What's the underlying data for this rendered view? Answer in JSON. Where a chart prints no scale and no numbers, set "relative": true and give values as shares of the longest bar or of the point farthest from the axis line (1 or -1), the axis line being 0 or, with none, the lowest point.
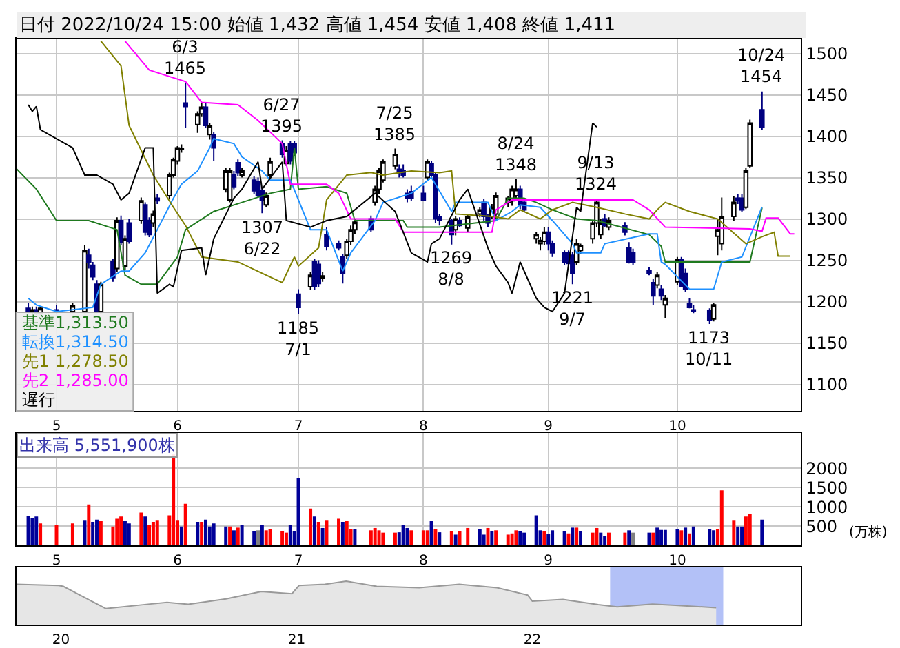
{
  "chart_data": [
    {
      "type": "candlestick",
      "title": "日付 2022/10/24 15:00 始値 1,432 高値 1,454 安値 1,408 終値 1,411",
      "x": [
        "2022-04-25",
        "2022-04-26",
        "2022-04-27",
        "2022-04-28",
        "2022-05-02",
        "2022-05-06",
        "2022-05-09",
        "2022-05-10",
        "2022-05-11",
        "2022-05-12",
        "2022-05-13",
        "2022-05-16",
        "2022-05-17",
        "2022-05-18",
        "2022-05-19",
        "2022-05-20",
        "2022-05-23",
        "2022-05-24",
        "2022-05-25",
        "2022-05-26",
        "2022-05-27",
        "2022-05-30",
        "2022-05-31",
        "2022-06-01",
        "2022-06-02",
        "2022-06-03",
        "2022-06-06",
        "2022-06-07",
        "2022-06-08",
        "2022-06-09",
        "2022-06-10",
        "2022-06-13",
        "2022-06-14",
        "2022-06-15",
        "2022-06-16",
        "2022-06-17",
        "2022-06-20",
        "2022-06-21",
        "2022-06-22",
        "2022-06-23",
        "2022-06-24",
        "2022-06-27",
        "2022-06-28",
        "2022-06-29",
        "2022-06-30",
        "2022-07-01",
        "2022-07-04",
        "2022-07-05",
        "2022-07-06",
        "2022-07-07",
        "2022-07-08",
        "2022-07-11",
        "2022-07-12",
        "2022-07-13",
        "2022-07-14",
        "2022-07-15",
        "2022-07-19",
        "2022-07-20",
        "2022-07-21",
        "2022-07-22",
        "2022-07-25",
        "2022-07-26",
        "2022-07-27",
        "2022-07-28",
        "2022-07-29",
        "2022-08-01",
        "2022-08-02",
        "2022-08-03",
        "2022-08-04",
        "2022-08-05",
        "2022-08-08",
        "2022-08-09",
        "2022-08-10",
        "2022-08-12",
        "2022-08-15",
        "2022-08-16",
        "2022-08-17",
        "2022-08-18",
        "2022-08-19",
        "2022-08-22",
        "2022-08-23",
        "2022-08-24",
        "2022-08-25",
        "2022-08-26",
        "2022-08-29",
        "2022-08-30",
        "2022-08-31",
        "2022-09-01",
        "2022-09-02",
        "2022-09-05",
        "2022-09-06",
        "2022-09-07",
        "2022-09-08",
        "2022-09-09",
        "2022-09-12",
        "2022-09-13",
        "2022-09-14",
        "2022-09-15",
        "2022-09-16",
        "2022-09-20",
        "2022-09-21",
        "2022-09-22",
        "2022-09-26",
        "2022-09-27",
        "2022-09-28",
        "2022-09-29",
        "2022-09-30",
        "2022-10-03",
        "2022-10-04",
        "2022-10-05",
        "2022-10-06",
        "2022-10-07",
        "2022-10-11",
        "2022-10-12",
        "2022-10-13",
        "2022-10-14",
        "2022-10-17",
        "2022-10-18",
        "2022-10-19",
        "2022-10-20",
        "2022-10-21",
        "2022-10-24"
      ],
      "ohlc": [
        [
          1192,
          1198,
          1186,
          1188
        ],
        [
          1188,
          1194,
          1184,
          1190
        ],
        [
          1190,
          1194,
          1184,
          1186
        ],
        [
          1186,
          1194,
          1184,
          1192
        ],
        [
          1190,
          1196,
          1185,
          1188
        ],
        [
          1188,
          1198,
          1186,
          1195
        ],
        [
          1188,
          1268,
          1186,
          1262
        ],
        [
          1256,
          1264,
          1240,
          1248
        ],
        [
          1244,
          1248,
          1226,
          1230
        ],
        [
          1221,
          1226,
          1186,
          1188
        ],
        [
          1188,
          1224,
          1185,
          1221
        ],
        [
          1248,
          1252,
          1224,
          1229
        ],
        [
          1240,
          1302,
          1236,
          1298
        ],
        [
          1298,
          1304,
          1268,
          1272
        ],
        [
          1243,
          1280,
          1238,
          1276
        ],
        [
          1295,
          1300,
          1270,
          1273
        ],
        [
          1298,
          1326,
          1294,
          1322
        ],
        [
          1317,
          1320,
          1280,
          1284
        ],
        [
          1298,
          1302,
          1278,
          1281
        ],
        [
          1295,
          1310,
          1290,
          1306
        ],
        [
          1325,
          1330,
          1318,
          1322
        ],
        [
          1328,
          1356,
          1324,
          1353
        ],
        [
          1353,
          1374,
          1350,
          1372
        ],
        [
          1370,
          1388,
          1366,
          1386
        ],
        [
          1384,
          1390,
          1380,
          1385
        ],
        [
          1440,
          1465,
          1410,
          1436
        ],
        [
          1414,
          1430,
          1404,
          1427
        ],
        [
          1427,
          1440,
          1424,
          1435
        ],
        [
          1435,
          1440,
          1410,
          1413
        ],
        [
          1402,
          1416,
          1396,
          1413
        ],
        [
          1402,
          1405,
          1370,
          1386
        ],
        [
          1336,
          1362,
          1332,
          1358
        ],
        [
          1323,
          1362,
          1320,
          1358
        ],
        [
          1353,
          1358,
          1336,
          1339
        ],
        [
          1368,
          1372,
          1352,
          1356
        ],
        [
          1353,
          1362,
          1350,
          1358
        ],
        [
          1347,
          1352,
          1330,
          1334
        ],
        [
          1345,
          1350,
          1326,
          1328
        ],
        [
          1334,
          1338,
          1307,
          1323
        ],
        [
          1317,
          1332,
          1314,
          1328
        ],
        [
          1353,
          1374,
          1348,
          1369
        ],
        [
          1391,
          1395,
          1374,
          1378
        ],
        [
          1367,
          1388,
          1364,
          1383
        ],
        [
          1391,
          1394,
          1366,
          1370
        ],
        [
          1391,
          1394,
          1376,
          1380
        ],
        [
          1209,
          1215,
          1185,
          1193
        ],
        [
          1218,
          1236,
          1214,
          1232
        ],
        [
          1248,
          1252,
          1214,
          1218
        ],
        [
          1245,
          1250,
          1218,
          1222
        ],
        [
          1228,
          1236,
          1224,
          1231
        ],
        [
          1281,
          1290,
          1262,
          1267
        ],
        [
          1270,
          1274,
          1262,
          1265
        ],
        [
          1254,
          1258,
          1222,
          1234
        ],
        [
          1256,
          1276,
          1252,
          1273
        ],
        [
          1273,
          1292,
          1268,
          1287
        ],
        [
          1287,
          1300,
          1282,
          1296
        ],
        [
          1300,
          1304,
          1284,
          1287
        ],
        [
          1320,
          1340,
          1316,
          1336
        ],
        [
          1336,
          1362,
          1330,
          1358
        ],
        [
          1347,
          1372,
          1344,
          1369
        ],
        [
          1364,
          1385,
          1360,
          1378
        ],
        [
          1360,
          1366,
          1350,
          1356
        ],
        [
          1358,
          1366,
          1350,
          1353
        ],
        [
          1331,
          1336,
          1320,
          1325
        ],
        [
          1333,
          1340,
          1322,
          1325
        ],
        [
          1331,
          1340,
          1322,
          1323
        ],
        [
          1350,
          1372,
          1346,
          1369
        ],
        [
          1367,
          1370,
          1350,
          1353
        ],
        [
          1353,
          1356,
          1295,
          1300
        ],
        [
          1303,
          1306,
          1292,
          1298
        ],
        [
          1298,
          1300,
          1269,
          1281
        ],
        [
          1287,
          1303,
          1280,
          1300
        ],
        [
          1298,
          1302,
          1290,
          1292
        ],
        [
          1289,
          1306,
          1284,
          1303
        ],
        [
          1306,
          1314,
          1302,
          1311
        ],
        [
          1320,
          1324,
          1298,
          1303
        ],
        [
          1303,
          1306,
          1290,
          1295
        ],
        [
          1303,
          1318,
          1300,
          1314
        ],
        [
          1306,
          1332,
          1300,
          1328
        ],
        [
          1320,
          1328,
          1314,
          1325
        ],
        [
          1322,
          1340,
          1316,
          1336
        ],
        [
          1328,
          1348,
          1322,
          1336
        ],
        [
          1336,
          1340,
          1312,
          1317
        ],
        [
          1320,
          1322,
          1308,
          1311
        ],
        [
          1276,
          1284,
          1270,
          1281
        ],
        [
          1270,
          1278,
          1262,
          1274
        ],
        [
          1273,
          1290,
          1268,
          1284
        ],
        [
          1284,
          1290,
          1262,
          1270
        ],
        [
          1270,
          1274,
          1254,
          1259
        ],
        [
          1259,
          1262,
          1244,
          1248
        ],
        [
          1259,
          1262,
          1240,
          1246
        ],
        [
          1256,
          1260,
          1221,
          1234
        ],
        [
          1248,
          1276,
          1244,
          1270
        ],
        [
          1262,
          1270,
          1258,
          1268
        ],
        [
          1276,
          1298,
          1270,
          1295
        ],
        [
          1295,
          1324,
          1290,
          1320
        ],
        [
          1281,
          1300,
          1276,
          1295
        ],
        [
          1300,
          1306,
          1290,
          1292
        ],
        [
          1290,
          1302,
          1286,
          1298
        ],
        [
          1292,
          1296,
          1280,
          1284
        ],
        [
          1265,
          1272,
          1246,
          1248
        ],
        [
          1259,
          1264,
          1244,
          1248
        ],
        [
          1238,
          1242,
          1232,
          1234
        ],
        [
          1223,
          1228,
          1196,
          1207
        ],
        [
          1220,
          1236,
          1216,
          1232
        ],
        [
          1215,
          1220,
          1202,
          1207
        ],
        [
          1196,
          1208,
          1180,
          1204
        ],
        [
          1224,
          1254,
          1220,
          1251
        ],
        [
          1251,
          1254,
          1218,
          1218
        ],
        [
          1234,
          1240,
          1212,
          1215
        ],
        [
          1198,
          1204,
          1192,
          1193
        ],
        [
          1190,
          1196,
          1186,
          1188
        ],
        [
          1189,
          1192,
          1173,
          1177
        ],
        [
          1179,
          1198,
          1176,
          1196
        ],
        [
          1279,
          1300,
          1256,
          1287
        ],
        [
          1270,
          1326,
          1262,
          1303
        ],
        [
          1303,
          1328,
          1298,
          1320
        ],
        [
          1325,
          1330,
          1318,
          1322
        ],
        [
          1325,
          1330,
          1308,
          1311
        ],
        [
          1314,
          1362,
          1312,
          1358
        ],
        [
          1364,
          1420,
          1362,
          1416
        ],
        [
          1432,
          1454,
          1408,
          1411
        ]
      ],
      "series": [
        {
          "type": "line",
          "name": "基準",
          "color": "#1f7a1f",
          "x": [
            "2022-04-22",
            "2022-04-27",
            "2022-05-02",
            "2022-05-10",
            "2022-05-17",
            "2022-05-19",
            "2022-05-23",
            "2022-05-27",
            "2022-06-01",
            "2022-06-03",
            "2022-06-10",
            "2022-06-17",
            "2022-06-24",
            "2022-06-29",
            "2022-06-30",
            "2022-07-01",
            "2022-07-08",
            "2022-07-13",
            "2022-07-15",
            "2022-07-27",
            "2022-07-28",
            "2022-08-05",
            "2022-08-19",
            "2022-08-22",
            "2022-08-26",
            "2022-08-29",
            "2022-09-02",
            "2022-09-08",
            "2022-09-13",
            "2022-09-26",
            "2022-09-29",
            "2022-09-30",
            "2022-10-13",
            "2022-10-21",
            "2022-10-24"
          ],
          "values": [
            1361,
            1336,
            1298,
            1298,
            1287,
            1232,
            1221,
            1221,
            1254,
            1287,
            1309,
            1320,
            1331,
            1336,
            1386,
            1336,
            1339,
            1331,
            1298,
            1298,
            1290,
            1290,
            1298,
            1325,
            1325,
            1320,
            1311,
            1300,
            1298,
            1281,
            1267,
            1248,
            1248,
            1248,
            1313.5
          ]
        },
        {
          "type": "line",
          "name": "転換",
          "color": "#1e90ff",
          "x": [
            "2022-04-25",
            "2022-04-27",
            "2022-05-02",
            "2022-05-11",
            "2022-05-13",
            "2022-05-18",
            "2022-05-20",
            "2022-05-24",
            "2022-05-27",
            "2022-05-31",
            "2022-06-02",
            "2022-06-06",
            "2022-06-09",
            "2022-06-10",
            "2022-06-15",
            "2022-06-17",
            "2022-06-22",
            "2022-06-24",
            "2022-06-29",
            "2022-07-04",
            "2022-07-08",
            "2022-07-12",
            "2022-07-14",
            "2022-07-20",
            "2022-07-22",
            "2022-07-29",
            "2022-08-03",
            "2022-08-08",
            "2022-08-09",
            "2022-08-17",
            "2022-08-19",
            "2022-08-23",
            "2022-08-25",
            "2022-08-30",
            "2022-09-02",
            "2022-09-07",
            "2022-09-08",
            "2022-09-14",
            "2022-09-15",
            "2022-09-26",
            "2022-09-28",
            "2022-09-29",
            "2022-09-30",
            "2022-10-06",
            "2022-10-12",
            "2022-10-14",
            "2022-10-19",
            "2022-10-24"
          ],
          "values": [
            1204,
            1196,
            1188,
            1193,
            1221,
            1237,
            1237,
            1259,
            1287,
            1325,
            1342,
            1358,
            1386,
            1397,
            1391,
            1375,
            1358,
            1347,
            1347,
            1287,
            1287,
            1237,
            1259,
            1298,
            1320,
            1331,
            1350,
            1309,
            1320,
            1320,
            1298,
            1309,
            1317,
            1314,
            1298,
            1270,
            1259,
            1259,
            1270,
            1282,
            1282,
            1248,
            1245,
            1215,
            1215,
            1248,
            1254,
            1314.5
          ]
        },
        {
          "type": "line",
          "name": "先1",
          "color": "#808000",
          "x": [
            "2022-05-13",
            "2022-05-18",
            "2022-05-20",
            "2022-05-26",
            "2022-05-31",
            "2022-06-03",
            "2022-06-07",
            "2022-06-16",
            "2022-06-23",
            "2022-06-27",
            "2022-06-30",
            "2022-07-01",
            "2022-07-06",
            "2022-07-08",
            "2022-07-13",
            "2022-07-19",
            "2022-07-22",
            "2022-07-29",
            "2022-08-05",
            "2022-08-08",
            "2022-08-09",
            "2022-08-18",
            "2022-08-22",
            "2022-08-25",
            "2022-08-30",
            "2022-09-02",
            "2022-09-07",
            "2022-09-13",
            "2022-09-20",
            "2022-09-26",
            "2022-09-28",
            "2022-09-30",
            "2022-10-06",
            "2022-10-13",
            "2022-10-20",
            "2022-10-24",
            "2022-10-27",
            "2022-10-28",
            "2022-10-31"
          ],
          "values": [
            1515,
            1485,
            1413,
            1353,
            1314,
            1292,
            1254,
            1248,
            1232,
            1223,
            1254,
            1243,
            1265,
            1323,
            1353,
            1356,
            1353,
            1358,
            1356,
            1358,
            1306,
            1303,
            1300,
            1311,
            1300,
            1311,
            1320,
            1314,
            1306,
            1300,
            1311,
            1320,
            1309,
            1300,
            1270,
            1278.5,
            1284,
            1255,
            1255
          ]
        },
        {
          "type": "line",
          "name": "先2",
          "color": "#ff00ff",
          "x": [
            "2022-05-19",
            "2022-05-25",
            "2022-06-03",
            "2022-06-07",
            "2022-06-16",
            "2022-06-21",
            "2022-06-27",
            "2022-06-29",
            "2022-07-08",
            "2022-07-11",
            "2022-07-14",
            "2022-07-25",
            "2022-07-27",
            "2022-08-18",
            "2022-08-19",
            "2022-08-23",
            "2022-09-22",
            "2022-09-26",
            "2022-09-30",
            "2022-10-21",
            "2022-10-24",
            "2022-10-25",
            "2022-10-28",
            "2022-10-31",
            "2022-11-01"
          ],
          "values": [
            1515,
            1480,
            1466,
            1441,
            1438,
            1419,
            1391,
            1342,
            1342,
            1331,
            1300,
            1300,
            1284,
            1284,
            1311,
            1323,
            1323,
            1311,
            1290,
            1288,
            1285,
            1301,
            1301,
            1282,
            1282
          ]
        },
        {
          "type": "line",
          "name": "遅行",
          "color": "#000000",
          "x": [
            "2022-04-25",
            "2022-04-26",
            "2022-04-27",
            "2022-04-28",
            "2022-05-06",
            "2022-05-09",
            "2022-05-12",
            "2022-05-16",
            "2022-05-18",
            "2022-05-20",
            "2022-05-24",
            "2022-05-26",
            "2022-05-27",
            "2022-05-30",
            "2022-05-31",
            "2022-06-02",
            "2022-06-07",
            "2022-06-08",
            "2022-06-10",
            "2022-06-15",
            "2022-06-17",
            "2022-06-21",
            "2022-06-22",
            "2022-06-27",
            "2022-06-28",
            "2022-07-04",
            "2022-07-08",
            "2022-07-13",
            "2022-07-20",
            "2022-07-25",
            "2022-07-29",
            "2022-08-02",
            "2022-08-03",
            "2022-08-05",
            "2022-08-10",
            "2022-08-12",
            "2022-08-17",
            "2022-08-19",
            "2022-08-22",
            "2022-08-23",
            "2022-08-25",
            "2022-08-29",
            "2022-08-31",
            "2022-09-02",
            "2022-09-05",
            "2022-09-08",
            "2022-09-09",
            "2022-09-12",
            "2022-09-13"
          ],
          "values": [
            1438,
            1430,
            1436,
            1408,
            1386,
            1353,
            1353,
            1342,
            1323,
            1331,
            1386,
            1386,
            1210,
            1221,
            1218,
            1262,
            1265,
            1232,
            1276,
            1325,
            1336,
            1369,
            1336,
            1369,
            1298,
            1290,
            1298,
            1303,
            1331,
            1309,
            1259,
            1248,
            1270,
            1276,
            1323,
            1336,
            1265,
            1243,
            1223,
            1210,
            1248,
            1204,
            1193,
            1188,
            1210,
            1314,
            1309,
            1416,
            1411
          ]
        }
      ],
      "xlim": [
        "2022-04-22",
        "2022-11-02T16:00"
      ],
      "xticks": [
        {
          "value": "2022-05-02",
          "label": "5"
        },
        {
          "value": "2022-06-01",
          "label": "6"
        },
        {
          "value": "2022-07-01",
          "label": "7"
        },
        {
          "value": "2022-08-01",
          "label": "8"
        },
        {
          "value": "2022-09-01",
          "label": "9"
        },
        {
          "value": "2022-10-03",
          "label": "10"
        }
      ],
      "ylim": [
        1068,
        1518
      ],
      "yticks": [
        1100,
        1150,
        1200,
        1250,
        1300,
        1350,
        1400,
        1450,
        1500
      ],
      "grid": true,
      "legend": "bottom left",
      "annotations": [
        "1,313.50",
        "1,314.50",
        "1,278.50",
        "1,285.00",
        {
          "text": "6/3\n1465",
          "x": "2022-06-03",
          "y": 1465
        },
        {
          "text": "6/27\n1395",
          "x": "2022-06-27",
          "y": 1395
        },
        {
          "text": "7/25\n1385",
          "x": "2022-07-25",
          "y": 1385
        },
        {
          "text": "8/24\n1348",
          "x": "2022-08-24",
          "y": 1348
        },
        {
          "text": "9/13\n1324",
          "x": "2022-09-13",
          "y": 1324
        },
        {
          "text": "10/24\n1454",
          "x": "2022-10-24",
          "y": 1454
        },
        {
          "text": "1307\n6/22",
          "x": "2022-06-22",
          "y": 1307
        },
        {
          "text": "1185\n7/1",
          "x": "2022-07-01",
          "y": 1185
        },
        {
          "text": "1269\n8/8",
          "x": "2022-08-08",
          "y": 1269
        },
        {
          "text": "1221\n9/7",
          "x": "2022-09-07",
          "y": 1221
        },
        {
          "text": "1173\n10/11",
          "x": "2022-10-11",
          "y": 1173
        }
      ]
    },
    {
      "type": "bar",
      "title": "出来高 5,551,900株",
      "ylabel": "(万株)",
      "x": [
        "2022-04-25",
        "2022-04-26",
        "2022-04-27",
        "2022-04-28",
        "2022-05-02",
        "2022-05-06",
        "2022-05-09",
        "2022-05-10",
        "2022-05-11",
        "2022-05-12",
        "2022-05-13",
        "2022-05-16",
        "2022-05-17",
        "2022-05-18",
        "2022-05-19",
        "2022-05-20",
        "2022-05-23",
        "2022-05-24",
        "2022-05-25",
        "2022-05-26",
        "2022-05-27",
        "2022-05-30",
        "2022-05-31",
        "2022-06-01",
        "2022-06-02",
        "2022-06-03",
        "2022-06-06",
        "2022-06-07",
        "2022-06-08",
        "2022-06-09",
        "2022-06-10",
        "2022-06-13",
        "2022-06-14",
        "2022-06-15",
        "2022-06-16",
        "2022-06-17",
        "2022-06-20",
        "2022-06-21",
        "2022-06-22",
        "2022-06-23",
        "2022-06-24",
        "2022-06-27",
        "2022-06-28",
        "2022-06-29",
        "2022-06-30",
        "2022-07-01",
        "2022-07-04",
        "2022-07-05",
        "2022-07-06",
        "2022-07-07",
        "2022-07-08",
        "2022-07-11",
        "2022-07-12",
        "2022-07-13",
        "2022-07-14",
        "2022-07-15",
        "2022-07-19",
        "2022-07-20",
        "2022-07-21",
        "2022-07-22",
        "2022-07-25",
        "2022-07-26",
        "2022-07-27",
        "2022-07-28",
        "2022-07-29",
        "2022-08-01",
        "2022-08-02",
        "2022-08-03",
        "2022-08-04",
        "2022-08-05",
        "2022-08-08",
        "2022-08-09",
        "2022-08-10",
        "2022-08-12",
        "2022-08-15",
        "2022-08-16",
        "2022-08-17",
        "2022-08-18",
        "2022-08-19",
        "2022-08-22",
        "2022-08-23",
        "2022-08-24",
        "2022-08-25",
        "2022-08-26",
        "2022-08-29",
        "2022-08-30",
        "2022-08-31",
        "2022-09-01",
        "2022-09-02",
        "2022-09-05",
        "2022-09-06",
        "2022-09-07",
        "2022-09-08",
        "2022-09-09",
        "2022-09-12",
        "2022-09-13",
        "2022-09-14",
        "2022-09-15",
        "2022-09-16",
        "2022-09-20",
        "2022-09-21",
        "2022-09-22",
        "2022-09-26",
        "2022-09-27",
        "2022-09-28",
        "2022-09-29",
        "2022-09-30",
        "2022-10-03",
        "2022-10-04",
        "2022-10-05",
        "2022-10-06",
        "2022-10-07",
        "2022-10-11",
        "2022-10-12",
        "2022-10-13",
        "2022-10-14",
        "2022-10-17",
        "2022-10-18",
        "2022-10-19",
        "2022-10-20",
        "2022-10-21",
        "2022-10-24"
      ],
      "values": [
        760,
        700,
        750,
        570,
        520,
        570,
        640,
        1060,
        610,
        670,
        630,
        490,
        690,
        750,
        630,
        570,
        850,
        750,
        540,
        610,
        640,
        780,
        2360,
        640,
        490,
        1080,
        610,
        610,
        670,
        490,
        570,
        490,
        490,
        390,
        460,
        540,
        360,
        390,
        540,
        390,
        420,
        360,
        330,
        520,
        360,
        1750,
        955,
        750,
        610,
        450,
        640,
        690,
        610,
        630,
        420,
        420,
        390,
        450,
        390,
        330,
        330,
        340,
        520,
        450,
        390,
        390,
        390,
        630,
        420,
        340,
        360,
        280,
        360,
        450,
        420,
        280,
        450,
        360,
        390,
        280,
        310,
        390,
        360,
        330,
        780,
        390,
        360,
        300,
        390,
        360,
        310,
        460,
        460,
        360,
        330,
        450,
        330,
        240,
        330,
        330,
        390,
        330,
        330,
        330,
        460,
        400,
        400,
        430,
        390,
        460,
        310,
        490,
        430,
        390,
        420,
        1430,
        640,
        490,
        490,
        750,
        820,
        670
      ],
      "colors": [
        "#000099",
        "#000099",
        "#000099",
        "#ff0000",
        "#ff0000",
        "#ff0000",
        "#000099",
        "#ff0000",
        "#000099",
        "#000099",
        "#ff0000",
        "#ff0000",
        "#ff0000",
        "#ff0000",
        "#000099",
        "#000099",
        "#ff0000",
        "#000099",
        "#ff0000",
        "#ff0000",
        "#ff0000",
        "#ff0000",
        "#ff0000",
        "#ff0000",
        "#000099",
        "#ff0000",
        "#000099",
        "#ff0000",
        "#000099",
        "#000099",
        "#000099",
        "#000099",
        "#ff0000",
        "#000099",
        "#ff0000",
        "#000099",
        "#000099",
        "#808080",
        "#000099",
        "#ff0000",
        "#ff0000",
        "#ff0000",
        "#ff0000",
        "#000099",
        "#000099",
        "#000099",
        "#ff0000",
        "#000099",
        "#ff0000",
        "#000099",
        "#ff0000",
        "#ff0000",
        "#000099",
        "#ff0000",
        "#ff0000",
        "#000099",
        "#ff0000",
        "#ff0000",
        "#ff0000",
        "#ff0000",
        "#ff0000",
        "#000099",
        "#000099",
        "#000099",
        "#ff0000",
        "#ff0000",
        "#ff0000",
        "#000099",
        "#ff0000",
        "#000099",
        "#ff0000",
        "#000099",
        "#ff0000",
        "#ff0000",
        "#000099",
        "#000099",
        "#ff0000",
        "#000099",
        "#ff0000",
        "#ff0000",
        "#ff0000",
        "#ff0000",
        "#000099",
        "#000099",
        "#000099",
        "#000099",
        "#ff0000",
        "#000099",
        "#000099",
        "#000099",
        "#ff0000",
        "#000099",
        "#ff0000",
        "#000099",
        "#ff0000",
        "#ff0000",
        "#000099",
        "#000099",
        "#ff0000",
        "#ff0000",
        "#000099",
        "#808080",
        "#000099",
        "#ff0000",
        "#000099",
        "#000099",
        "#000099",
        "#000099",
        "#ff0000",
        "#000099",
        "#ff0000",
        "#000099",
        "#000099",
        "#000099",
        "#ff0000",
        "#ff0000",
        "#ff0000",
        "#000099",
        "#000099",
        "#ff0000",
        "#ff0000",
        "#000099"
      ],
      "xlim": [
        "2022-04-22",
        "2022-11-02T16:00"
      ],
      "xticks": [
        {
          "value": "2022-05-02",
          "label": "5"
        },
        {
          "value": "2022-06-01",
          "label": "6"
        },
        {
          "value": "2022-07-01",
          "label": "7"
        },
        {
          "value": "2022-08-01",
          "label": "8"
        },
        {
          "value": "2022-09-01",
          "label": "9"
        },
        {
          "value": "2022-10-03",
          "label": "10"
        }
      ],
      "ylim": [
        0,
        2925
      ],
      "yticks": [
        500,
        1000,
        1500,
        2000
      ],
      "grid": true
    },
    {
      "type": "area",
      "relative": true,
      "color": "#999999",
      "tick_labels": "x",
      "x": [
        2019.81,
        2019.99,
        2020.01,
        2020.08,
        2020.19,
        2020.37,
        2020.45,
        2020.54,
        2020.7,
        2020.85,
        2020.98,
        2021.01,
        2021.12,
        2021.21,
        2021.34,
        2021.52,
        2021.69,
        2021.85,
        2021.98,
        2022.0,
        2022.13,
        2022.28,
        2022.36,
        2022.51,
        2022.62,
        2022.78
      ],
      "values": [
        0.93,
        0.9,
        0.88,
        0.68,
        0.37,
        0.47,
        0.51,
        0.47,
        0.59,
        0.76,
        0.71,
        0.9,
        0.93,
        1,
        0.88,
        0.85,
        0.93,
        0.85,
        0.68,
        0.54,
        0.58,
        0.46,
        0.41,
        0.47,
        0.44,
        0.39
      ],
      "xlim": [
        2019.81,
        2023.14
      ],
      "xticks": [
        {
          "value": 2020,
          "label": "20"
        },
        {
          "value": 2021,
          "label": "21"
        },
        {
          "value": 2022,
          "label": "22"
        }
      ],
      "bands": [
        {
          "axis": "x",
          "from": 2022.33,
          "to": 2022.81,
          "color": "#b3c1f7"
        }
      ]
    }
  ]
}
